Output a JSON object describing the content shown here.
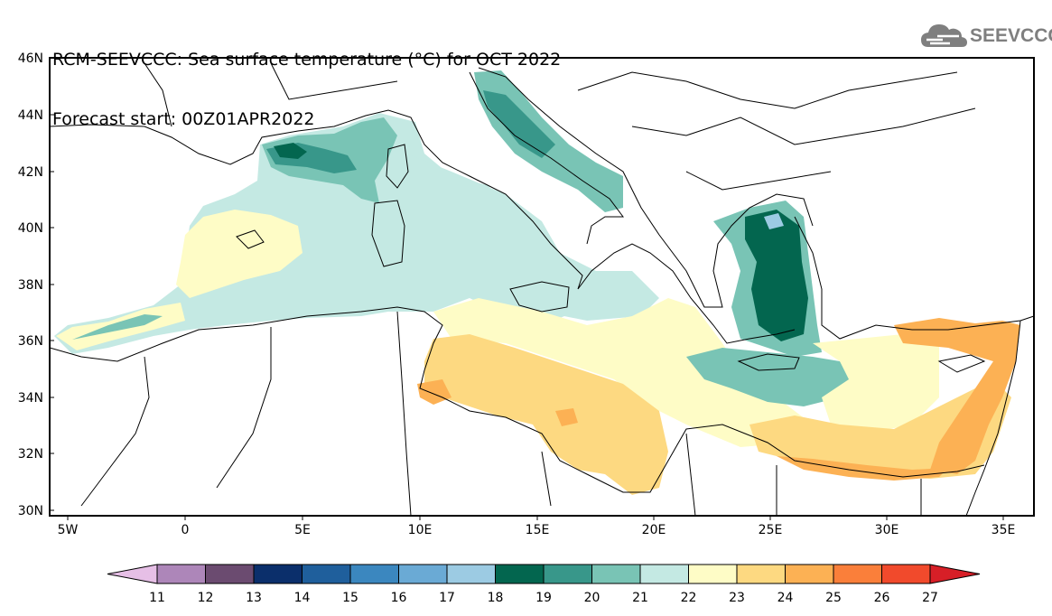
{
  "title": {
    "line1": "RCM-SEEVCCC: Sea surface temperature (°C) for OCT 2022",
    "line2": "Forecast start: 00Z01APR2022"
  },
  "logo": {
    "text": "SEEVCCC",
    "icon": "cloud-icon",
    "color": "#7f7f7f"
  },
  "map": {
    "lat_labels": [
      "46N",
      "44N",
      "42N",
      "40N",
      "38N",
      "36N",
      "34N",
      "32N",
      "30N"
    ],
    "lon_labels": [
      "5W",
      "0",
      "5E",
      "10E",
      "15E",
      "20E",
      "25E",
      "30E",
      "35E"
    ]
  },
  "colorbar": {
    "labels": [
      "11",
      "12",
      "13",
      "14",
      "15",
      "16",
      "17",
      "18",
      "19",
      "20",
      "21",
      "22",
      "23",
      "24",
      "25",
      "26",
      "27"
    ],
    "colors": [
      "#e6bfe6",
      "#ad86b9",
      "#6b4b70",
      "#0b2f6b",
      "#1f5f9c",
      "#3b87bf",
      "#6aaad5",
      "#9ccbe3",
      "#03664f",
      "#38978a",
      "#79c4b5",
      "#c4e9e3",
      "#fefcc6",
      "#fdd981",
      "#fcb154",
      "#fa7f3a",
      "#f14a2c",
      "#d71f27"
    ]
  }
}
